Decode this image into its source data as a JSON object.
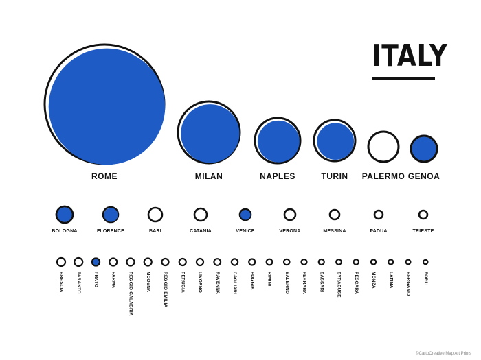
{
  "title": "ITALY",
  "credit": "©CartoCreative Map Art Prints",
  "colors": {
    "fill": "#1f5bc4",
    "stroke": "#111111"
  },
  "cities_large": [
    {
      "name": "ROME",
      "fill": 0.95
    },
    {
      "name": "MILAN",
      "fill": 0.9
    },
    {
      "name": "NAPLES",
      "fill": 0.85
    },
    {
      "name": "TURIN",
      "fill": 0.8
    },
    {
      "name": "PALERMO",
      "fill": 0
    },
    {
      "name": "GENOA",
      "fill": 1
    }
  ],
  "cities_medium": [
    {
      "name": "BOLOGNA",
      "fill": 1
    },
    {
      "name": "FLORENCE",
      "fill": 0.85
    },
    {
      "name": "BARI",
      "fill": 0
    },
    {
      "name": "CATANIA",
      "fill": 0
    },
    {
      "name": "VENICE",
      "fill": 0.8
    },
    {
      "name": "VERONA",
      "fill": 0
    },
    {
      "name": "MESSINA",
      "fill": 0
    },
    {
      "name": "PADUA",
      "fill": 0
    },
    {
      "name": "TRIESTE",
      "fill": 0
    }
  ],
  "cities_small": [
    {
      "name": "BRESCIA",
      "fill": 0
    },
    {
      "name": "TARANTO",
      "fill": 0
    },
    {
      "name": "PRATO",
      "fill": 1
    },
    {
      "name": "PARMA",
      "fill": 0
    },
    {
      "name": "REGGIO CALABRIA",
      "fill": 0
    },
    {
      "name": "MODENA",
      "fill": 0
    },
    {
      "name": "REGGIO EMILIA",
      "fill": 0
    },
    {
      "name": "PERUGIA",
      "fill": 0
    },
    {
      "name": "LIVORNO",
      "fill": 0
    },
    {
      "name": "RAVENNA",
      "fill": 0
    },
    {
      "name": "CAGLIARI",
      "fill": 0
    },
    {
      "name": "FOGGIA",
      "fill": 0
    },
    {
      "name": "RIMINI",
      "fill": 0
    },
    {
      "name": "SALERNO",
      "fill": 0
    },
    {
      "name": "FERRARA",
      "fill": 0
    },
    {
      "name": "SASSARI",
      "fill": 0
    },
    {
      "name": "SYRACUSE",
      "fill": 0
    },
    {
      "name": "PESCARA",
      "fill": 0
    },
    {
      "name": "MONZA",
      "fill": 0
    },
    {
      "name": "LATINA",
      "fill": 0
    },
    {
      "name": "BERGAMO",
      "fill": 0
    },
    {
      "name": "FORLI",
      "fill": 0
    }
  ]
}
